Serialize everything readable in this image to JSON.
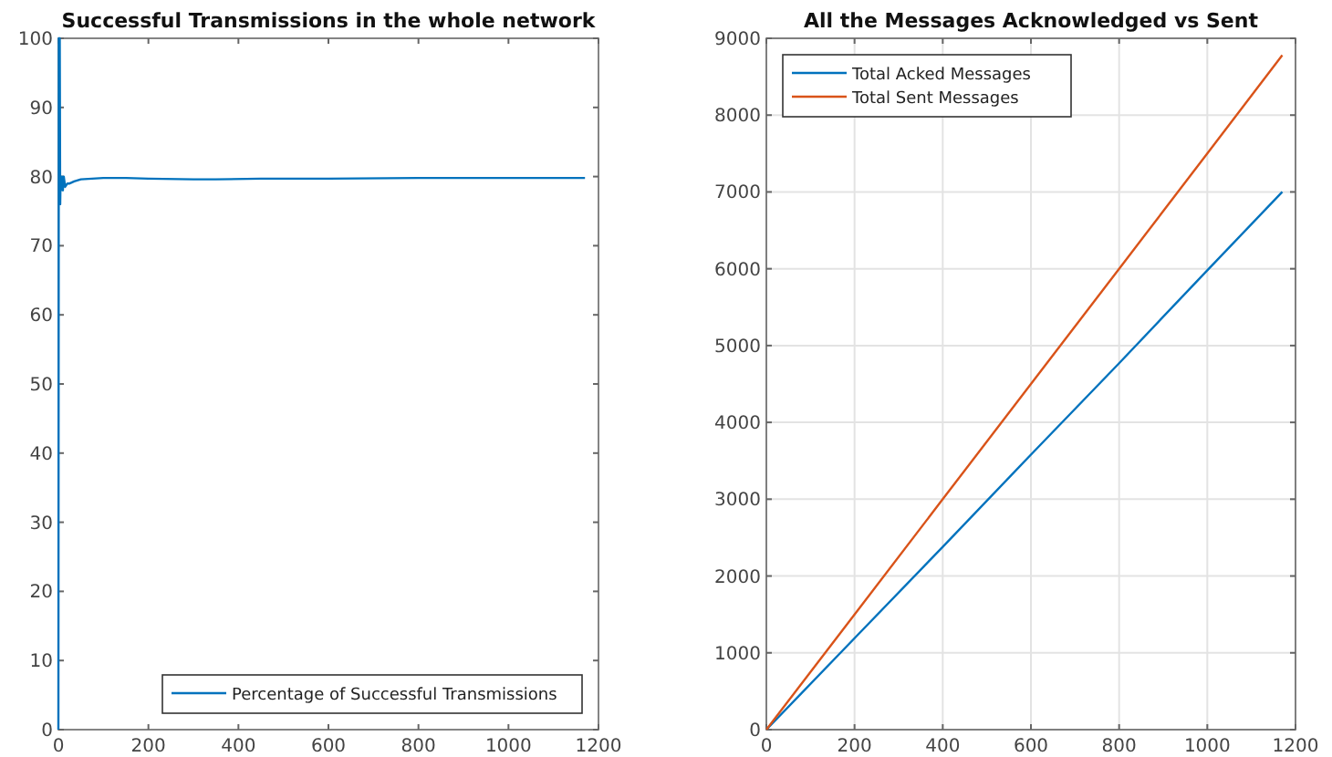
{
  "chart_data": [
    {
      "type": "line",
      "title": "Successful Transmissions in the whole network",
      "x": [
        0,
        1,
        3,
        4,
        5,
        6,
        8,
        10,
        12,
        15,
        20,
        25,
        35,
        50,
        75,
        100,
        150,
        200,
        300,
        350,
        450,
        600,
        800,
        1000,
        1170
      ],
      "series": [
        {
          "name": "Percentage of Successful Transmissions",
          "color": "#0072bd",
          "values": [
            0,
            100,
            100,
            76,
            80,
            78,
            80,
            78,
            80,
            78.5,
            79,
            79,
            79.3,
            79.6,
            79.7,
            79.8,
            79.8,
            79.7,
            79.6,
            79.6,
            79.7,
            79.7,
            79.8,
            79.8,
            79.8
          ]
        }
      ],
      "xlim": [
        0,
        1200
      ],
      "ylim": [
        0,
        100
      ],
      "xticks": [
        0,
        200,
        400,
        600,
        800,
        1000,
        1200
      ],
      "yticks": [
        0,
        10,
        20,
        30,
        40,
        50,
        60,
        70,
        80,
        90,
        100
      ],
      "grid": false,
      "legend": "bottom right"
    },
    {
      "type": "line",
      "title": "All the Messages Acknowledged vs Sent",
      "x": [
        0,
        200,
        400,
        600,
        800,
        1000,
        1170
      ],
      "series": [
        {
          "name": "Total Acked Messages",
          "color": "#0072bd",
          "values": [
            0,
            1190,
            2380,
            3580,
            4770,
            5980,
            7000
          ]
        },
        {
          "name": "Total Sent Messages",
          "color": "#d95319",
          "values": [
            0,
            1500,
            3000,
            4500,
            6000,
            7500,
            8780
          ]
        }
      ],
      "xlim": [
        0,
        1200
      ],
      "ylim": [
        0,
        9000
      ],
      "xticks": [
        0,
        200,
        400,
        600,
        800,
        1000,
        1200
      ],
      "yticks": [
        0,
        1000,
        2000,
        3000,
        4000,
        5000,
        6000,
        7000,
        8000,
        9000
      ],
      "grid": true,
      "legend": "top left"
    }
  ]
}
